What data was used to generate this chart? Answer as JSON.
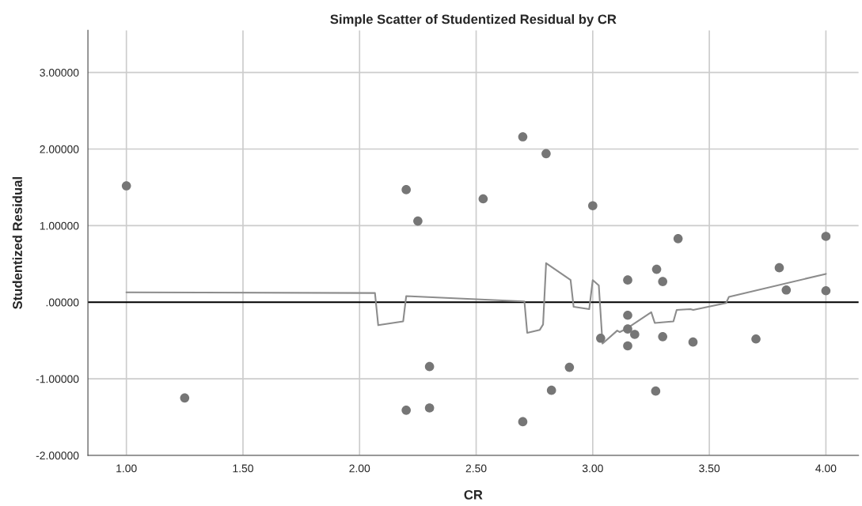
{
  "chart_data": {
    "type": "scatter",
    "title": "Simple Scatter of Studentized Residual by CR",
    "xlabel": "CR",
    "ylabel": "Studentized Residual",
    "xlim": [
      0.835,
      4.14
    ],
    "ylim": [
      -2.0,
      3.55
    ],
    "xticks": [
      {
        "value": 1.0,
        "label": "1.00"
      },
      {
        "value": 1.5,
        "label": "1.50"
      },
      {
        "value": 2.0,
        "label": "2.00"
      },
      {
        "value": 2.5,
        "label": "2.50"
      },
      {
        "value": 3.0,
        "label": "3.00"
      },
      {
        "value": 3.5,
        "label": "3.50"
      },
      {
        "value": 4.0,
        "label": "4.00"
      }
    ],
    "yticks": [
      {
        "value": -2,
        "label": "-2.00000"
      },
      {
        "value": -1,
        "label": "-1.00000"
      },
      {
        "value": 0,
        "label": ".00000"
      },
      {
        "value": 1,
        "label": "1.00000"
      },
      {
        "value": 2,
        "label": "2.00000"
      },
      {
        "value": 3,
        "label": "3.00000"
      }
    ],
    "grid": true,
    "marker": "circle",
    "ref_lines": [
      {
        "axis": "y",
        "value": 0,
        "color": "#000000"
      }
    ],
    "series": [
      {
        "color": "#767676",
        "x": [
          1.0,
          1.25,
          2.2,
          2.25,
          2.3,
          2.2,
          2.3,
          2.53,
          2.7,
          2.8,
          3.0,
          2.9,
          2.823,
          2.7,
          3.034,
          3.366,
          4.0,
          3.274,
          3.8,
          3.15,
          3.3,
          3.83,
          4.0,
          3.15,
          3.15,
          3.18,
          3.3,
          3.43,
          3.7,
          3.15,
          3.27
        ],
        "values": [
          1.52,
          -1.25,
          1.47,
          1.06,
          -0.84,
          -1.41,
          -1.38,
          1.35,
          2.16,
          1.94,
          1.26,
          -0.85,
          -1.15,
          -1.56,
          -0.47,
          0.83,
          0.86,
          0.43,
          0.45,
          0.29,
          0.27,
          0.16,
          0.15,
          -0.17,
          -0.35,
          -0.42,
          -0.45,
          -0.52,
          -0.48,
          -0.57,
          -1.16
        ]
      },
      {
        "type": "line",
        "color": "#8c8c8c",
        "marker": "none",
        "x": [
          1.0,
          2.066,
          2.08,
          2.187,
          2.2,
          2.707,
          2.719,
          2.773,
          2.787,
          2.8,
          2.905,
          2.918,
          2.985,
          3.0,
          3.026,
          3.042,
          3.105,
          3.116,
          3.148,
          3.251,
          3.266,
          3.346,
          3.36,
          3.419,
          3.431,
          3.572,
          3.584,
          4.0
        ],
        "values": [
          0.13,
          0.12,
          -0.3,
          -0.25,
          0.08,
          0.01,
          -0.4,
          -0.36,
          -0.29,
          0.51,
          0.29,
          -0.06,
          -0.09,
          0.29,
          0.22,
          -0.54,
          -0.37,
          -0.39,
          -0.34,
          -0.13,
          -0.27,
          -0.25,
          -0.1,
          -0.09,
          -0.1,
          -0.01,
          0.07,
          0.37
        ]
      }
    ]
  }
}
